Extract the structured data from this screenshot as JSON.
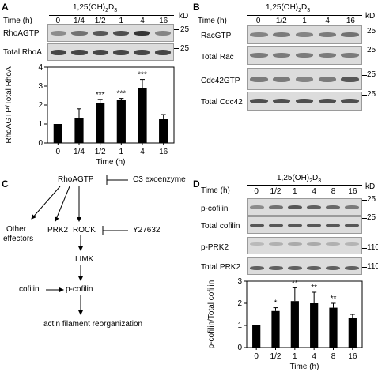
{
  "panels": {
    "A": {
      "letter": "A",
      "treatment": "1,25(OH)",
      "treatment_sub1": "2",
      "treatment_mid": "D",
      "treatment_sub2": "3",
      "time_label": "Time (h)",
      "times": [
        "0",
        "1/4",
        "1/2",
        "1",
        "4",
        "16"
      ],
      "kd_unit": "kD",
      "blots": [
        {
          "label": "RhoAGTP",
          "marker": "25"
        },
        {
          "label": "Total RhoA",
          "marker": "25"
        }
      ]
    },
    "B": {
      "letter": "B",
      "treatment": "1,25(OH)",
      "treatment_sub1": "2",
      "treatment_mid": "D",
      "treatment_sub2": "3",
      "time_label": "Time (h)",
      "times": [
        "0",
        "1/2",
        "1",
        "4",
        "16"
      ],
      "kd_unit": "kD",
      "blots": [
        {
          "label": "RacGTP",
          "marker": "25"
        },
        {
          "label": "Total Rac",
          "marker": "25"
        },
        {
          "label": "Cdc42GTP",
          "marker": "25"
        },
        {
          "label": "Total Cdc42",
          "marker": "25"
        }
      ]
    },
    "C": {
      "letter": "C",
      "nodes": {
        "rhoagtp": "RhoAGTP",
        "c3": "C3 exoenzyme",
        "other1": "Other",
        "other2": "effectors",
        "prk2": "PRK2",
        "rock": "ROCK",
        "y27632": "Y27632",
        "limk": "LIMK",
        "cofilin": "cofilin",
        "pcofilin": "p-cofilin",
        "actin": "actin filament reorganization"
      }
    },
    "D": {
      "letter": "D",
      "treatment": "1,25(OH)",
      "treatment_sub1": "2",
      "treatment_mid": "D",
      "treatment_sub2": "3",
      "time_label": "Time (h)",
      "times": [
        "0",
        "1/2",
        "1",
        "4",
        "8",
        "16"
      ],
      "kd_unit": "kD",
      "blots": [
        {
          "label": "p-cofilin",
          "marker": "25"
        },
        {
          "label": "Total cofilin",
          "marker": "25"
        },
        {
          "label": "p-PRK2",
          "marker": "110"
        },
        {
          "label": "Total PRK2",
          "marker": "110"
        }
      ]
    }
  },
  "chart_data": [
    {
      "type": "bar",
      "panel": "A",
      "categories": [
        "0",
        "1/4",
        "1/2",
        "1",
        "4",
        "16"
      ],
      "values": [
        1.0,
        1.3,
        2.1,
        2.25,
        2.9,
        1.25
      ],
      "errors": [
        0,
        0.5,
        0.2,
        0.1,
        0.45,
        0.25
      ],
      "significance": [
        "",
        "",
        "***",
        "***",
        "***",
        ""
      ],
      "xlabel": "Time (h)",
      "ylabel": "RhoAGTP/Total RhoA",
      "ylim": [
        0,
        4
      ],
      "yticks": [
        "0",
        "1",
        "2",
        "3",
        "4"
      ]
    },
    {
      "type": "bar",
      "panel": "D",
      "categories": [
        "0",
        "1/2",
        "1",
        "4",
        "8",
        "16"
      ],
      "values": [
        1.0,
        1.65,
        2.1,
        2.0,
        1.8,
        1.35
      ],
      "errors": [
        0,
        0.15,
        0.6,
        0.5,
        0.2,
        0.15
      ],
      "significance": [
        "",
        "*",
        "**",
        "**",
        "**",
        ""
      ],
      "xlabel": "Time (h)",
      "ylabel": "p-cofilin/Total cofilin",
      "ylim": [
        0,
        3
      ],
      "yticks": [
        "0",
        "1",
        "2",
        "3"
      ]
    }
  ]
}
